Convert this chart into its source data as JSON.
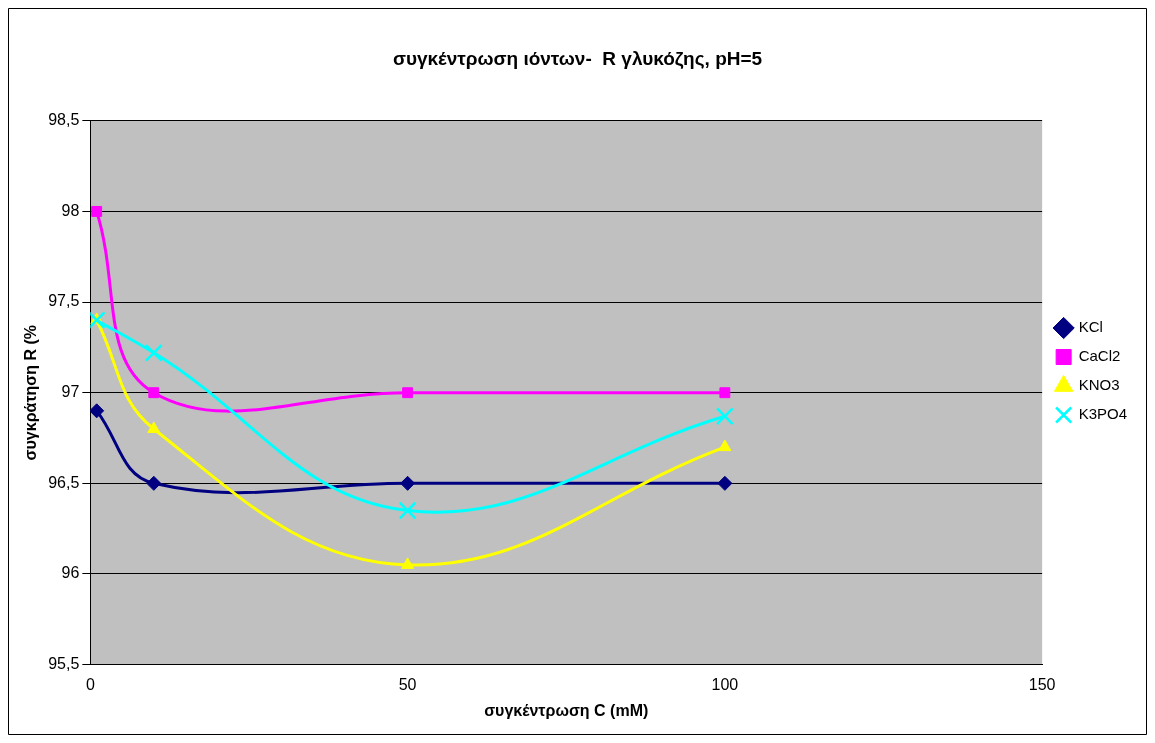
{
  "chart_data": {
    "type": "line",
    "title": "συγκέντρωση ιόντων-  R γλυκόζης, pH=5",
    "xlabel": "συγκέντρωση C (mM)",
    "ylabel": "συγκράτηση R (%",
    "x": [
      1,
      10,
      50,
      100
    ],
    "series": [
      {
        "name": "KCl",
        "color": "#000080",
        "marker": "diamond",
        "values": [
          96.9,
          96.5,
          96.5,
          96.5
        ]
      },
      {
        "name": "CaCl2",
        "color": "#ff00ff",
        "marker": "square",
        "values": [
          98,
          97,
          97,
          97
        ]
      },
      {
        "name": "KNO3",
        "color": "#ffff00",
        "marker": "triangle",
        "values": [
          97.4,
          96.8,
          96.05,
          96.7
        ]
      },
      {
        "name": "K3PO4",
        "color": "#00ffff",
        "marker": "cross",
        "values": [
          97.4,
          97.22,
          96.35,
          96.87
        ]
      }
    ],
    "xlim": [
      0,
      150
    ],
    "xticks": [
      0,
      50,
      100,
      150
    ],
    "ylim": [
      95.5,
      98.5
    ],
    "yticks": [
      {
        "value": 95.5,
        "label": "95,5"
      },
      96,
      {
        "value": 96.5,
        "label": "96,5"
      },
      97,
      {
        "value": 97.5,
        "label": "97,5"
      },
      98,
      {
        "value": 98.5,
        "label": "98,5"
      }
    ],
    "grid": "y",
    "legend": "right",
    "line_style": "solid"
  }
}
